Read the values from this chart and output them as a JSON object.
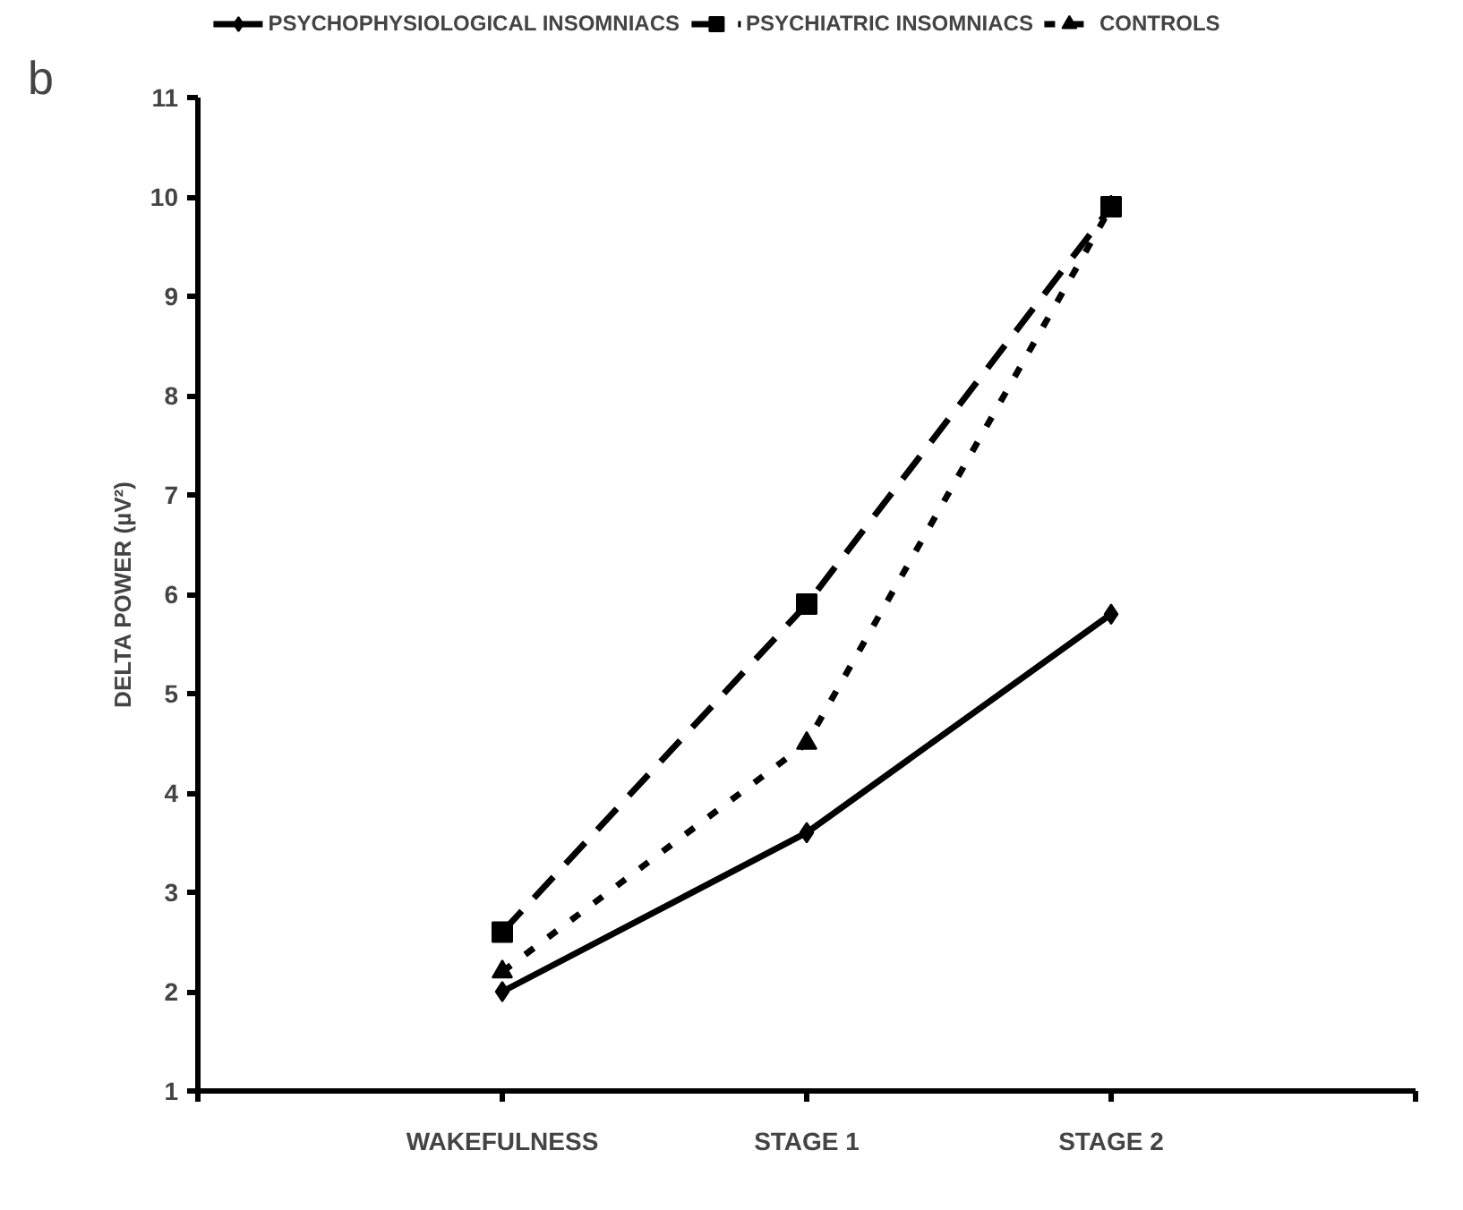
{
  "chart_data": {
    "type": "line",
    "ylabel": "DELTA POWER (µV²)",
    "annotations": [
      "b"
    ],
    "categories": [
      "WAKEFULNESS",
      "STAGE 1",
      "STAGE 2"
    ],
    "series": [
      {
        "name": "PSYCHOPHYSIOLOGICAL INSOMNIACS",
        "color": "#000000",
        "values": [
          2.0,
          3.6,
          5.8
        ],
        "marker": "diamond",
        "line_style": "solid"
      },
      {
        "name": "PSYCHIATRIC INSOMNIACS",
        "color": "#000000",
        "values": [
          2.6,
          5.9,
          9.9
        ],
        "marker": "square",
        "line_style": "dashed"
      },
      {
        "name": "CONTROLS",
        "color": "#000000",
        "values": [
          2.2,
          4.5,
          9.9
        ],
        "marker": "triangle",
        "line_style": "dotted"
      }
    ],
    "ylim": [
      1,
      11
    ],
    "yticks": [
      1,
      2,
      3,
      4,
      5,
      6,
      7,
      8,
      9,
      10,
      11
    ],
    "grid": false,
    "legend": "top"
  }
}
